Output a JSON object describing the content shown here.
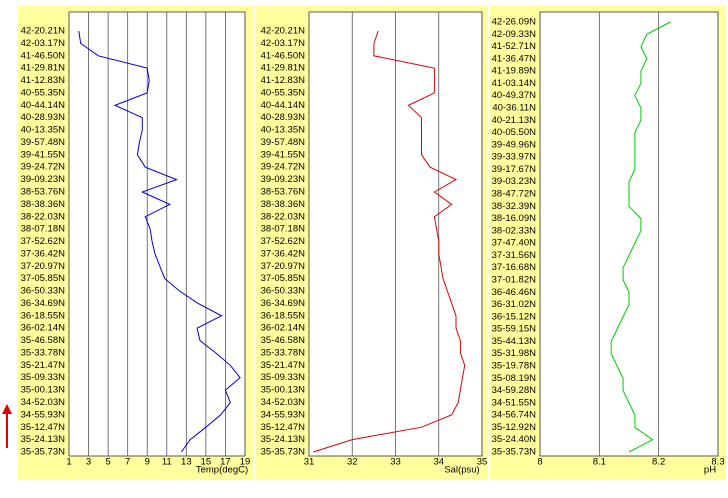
{
  "chart_data": [
    {
      "type": "line",
      "xlabel": "Temp(degC)",
      "categories": [
        "42-20.21N",
        "42-03.17N",
        "41-46.50N",
        "41-29.81N",
        "41-12.83N",
        "40-55.35N",
        "40-44.14N",
        "40-28.93N",
        "40-13.35N",
        "39-57.48N",
        "39-41.55N",
        "39-24.72N",
        "39-09.23N",
        "38-53.76N",
        "38-38.36N",
        "38-22.03N",
        "38-07.18N",
        "37-52.62N",
        "37-36.42N",
        "37-20.97N",
        "37-05.85N",
        "36-50.33N",
        "36-34.69N",
        "36-18.55N",
        "36-02.14N",
        "35-46.58N",
        "35-33.78N",
        "35-21.47N",
        "35-09.33N",
        "35-00.13N",
        "34-52.03N",
        "34-55.93N",
        "35-12.47N",
        "35-24.13N",
        "35-35.73N"
      ],
      "values": [
        2,
        2.2,
        4,
        9,
        9.2,
        9,
        5.7,
        8.5,
        8.5,
        8.2,
        8,
        8.8,
        12,
        8.5,
        11.3,
        8.8,
        9.3,
        9.5,
        9.8,
        10.3,
        10.8,
        12.3,
        14.2,
        16.6,
        14.1,
        14.4,
        16,
        17.5,
        18.5,
        17,
        17.5,
        16.5,
        15,
        13.4,
        12.5
      ],
      "color": "#0000cc",
      "xlim": [
        1,
        19
      ],
      "xticks": [
        1,
        3,
        5,
        7,
        9,
        11,
        13,
        15,
        17,
        19
      ],
      "grid": true
    },
    {
      "type": "line",
      "xlabel": "Sal(psu)",
      "categories": [
        "42-20.21N",
        "42-03.17N",
        "41-46.50N",
        "41-29.81N",
        "41-12.83N",
        "40-55.35N",
        "40-44.14N",
        "40-28.93N",
        "40-13.35N",
        "39-57.48N",
        "39-41.55N",
        "39-24.72N",
        "39-09.23N",
        "38-53.76N",
        "38-38.36N",
        "38-22.03N",
        "38-07.18N",
        "37-52.62N",
        "37-36.42N",
        "37-20.97N",
        "37-05.85N",
        "36-50.33N",
        "36-34.69N",
        "36-18.55N",
        "36-02.14N",
        "35-46.58N",
        "35-33.78N",
        "35-21.47N",
        "35-09.33N",
        "35-00.13N",
        "34-52.03N",
        "34-55.93N",
        "35-12.47N",
        "35-24.13N",
        "35-35.73N"
      ],
      "values": [
        32.6,
        32.5,
        32.5,
        33.9,
        33.9,
        33.9,
        33.3,
        33.6,
        33.6,
        33.6,
        33.6,
        33.8,
        34.4,
        33.9,
        34.3,
        33.9,
        33.95,
        34,
        34,
        34.05,
        34.1,
        34.2,
        34.3,
        34.4,
        34.4,
        34.5,
        34.5,
        34.6,
        34.55,
        34.5,
        34.45,
        34.3,
        33.6,
        32,
        31.1
      ],
      "color": "#dd0000",
      "xlim": [
        31,
        35
      ],
      "xticks": [
        31,
        32,
        33,
        34,
        35
      ],
      "grid": true
    },
    {
      "type": "line",
      "xlabel": "pH",
      "categories": [
        "42-26.09N",
        "42-09.33N",
        "41-52.71N",
        "41-36.47N",
        "41-19.89N",
        "41-03.14N",
        "40-49.37N",
        "40-36.11N",
        "40-21.13N",
        "40-05.50N",
        "39-49.96N",
        "39-33.97N",
        "39-17.67N",
        "39-03.23N",
        "38-47.72N",
        "38-32.39N",
        "38-16.09N",
        "38-02.33N",
        "37-47.40N",
        "37-31.56N",
        "37-16.68N",
        "37-01.82N",
        "36-46.46N",
        "36-31.02N",
        "36-15.12N",
        "35-59.15N",
        "35-44.13N",
        "35-31.98N",
        "35-19.78N",
        "35-08.19N",
        "34-59.28N",
        "34-51.55N",
        "34-56.74N",
        "35-12.92N",
        "35-24.40N",
        "35-35.73N"
      ],
      "values": [
        8.22,
        8.18,
        8.17,
        8.18,
        8.17,
        8.17,
        8.16,
        8.17,
        8.17,
        8.16,
        8.16,
        8.16,
        8.16,
        8.15,
        8.15,
        8.15,
        8.17,
        8.17,
        8.16,
        8.15,
        8.14,
        8.14,
        8.15,
        8.15,
        8.14,
        8.13,
        8.12,
        8.12,
        8.13,
        8.14,
        8.14,
        8.15,
        8.16,
        8.16,
        8.19,
        8.15
      ],
      "color": "#00cc00",
      "xlim": [
        8,
        8.3
      ],
      "xticks": [
        8,
        8.1,
        8.2,
        8.3
      ],
      "grid": true
    }
  ]
}
